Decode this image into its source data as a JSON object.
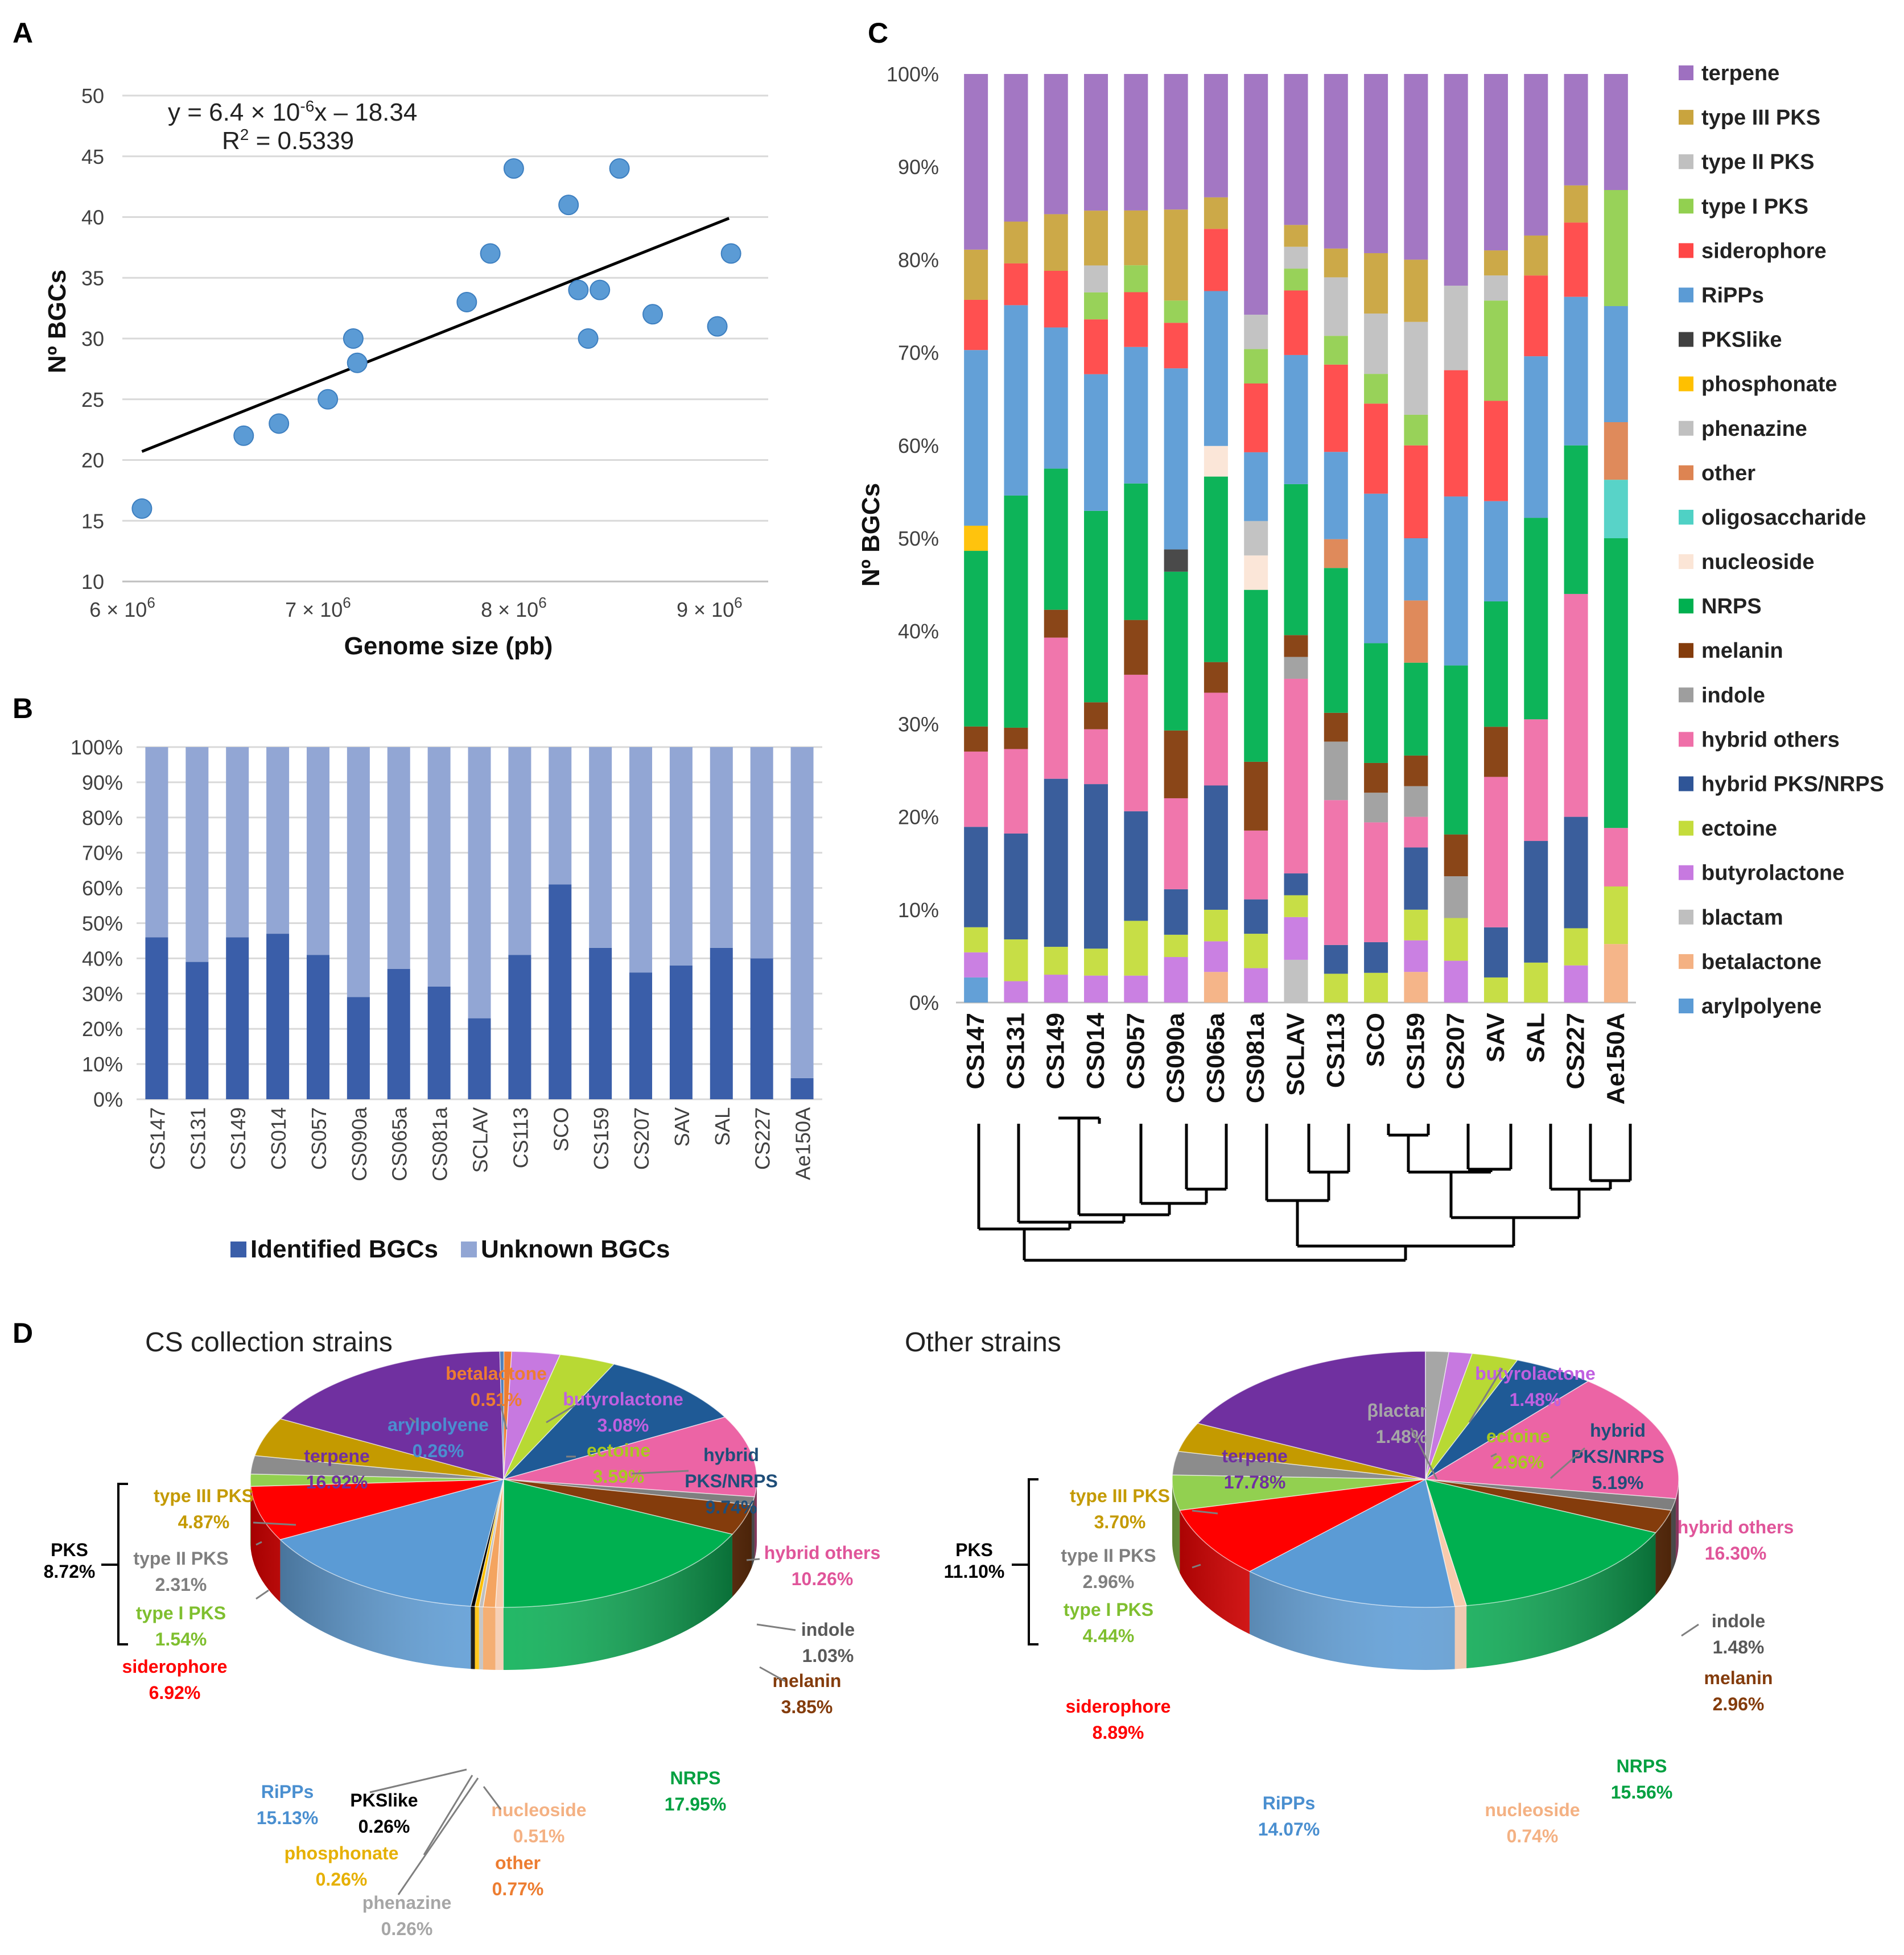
{
  "panels": {
    "A": "A",
    "B": "B",
    "C": "C",
    "D": "D"
  },
  "chart_data": [
    {
      "id": "A",
      "type": "scatter",
      "xlabel": "Genome size (pb)",
      "ylabel": "Nº BGCs",
      "xlim": [
        6000000,
        9300000
      ],
      "ylim": [
        10,
        50
      ],
      "xticks": [
        6000000,
        7000000,
        8000000,
        9000000
      ],
      "yticks": [
        10,
        15,
        20,
        25,
        30,
        35,
        40,
        45,
        50
      ],
      "xtick_mantissa": [
        "6",
        "7",
        "8",
        "9"
      ],
      "xtick_base": "× 10",
      "xtick_exp": "6",
      "points": [
        {
          "x": 6100000,
          "y": 16
        },
        {
          "x": 6620000,
          "y": 22
        },
        {
          "x": 6800000,
          "y": 23
        },
        {
          "x": 7050000,
          "y": 25
        },
        {
          "x": 7180000,
          "y": 30
        },
        {
          "x": 7200000,
          "y": 28
        },
        {
          "x": 7760000,
          "y": 33
        },
        {
          "x": 7880000,
          "y": 37
        },
        {
          "x": 8000000,
          "y": 44
        },
        {
          "x": 8280000,
          "y": 41
        },
        {
          "x": 8330000,
          "y": 34
        },
        {
          "x": 8380000,
          "y": 30
        },
        {
          "x": 8440000,
          "y": 34
        },
        {
          "x": 8540000,
          "y": 44
        },
        {
          "x": 8710000,
          "y": 32
        },
        {
          "x": 9040000,
          "y": 31
        },
        {
          "x": 9110000,
          "y": 37
        }
      ],
      "trendline": {
        "x_start": 6100000,
        "x_end": 9100000,
        "y_start": 20.7,
        "y_end": 39.9
      },
      "equation_parts": {
        "a": "y = 6.4 × 10",
        "exp": "-6",
        "b": "x – 18.34"
      },
      "r2_parts": {
        "a": "R",
        "exp": "2",
        "b": " = 0.5339"
      }
    },
    {
      "id": "B",
      "type": "bar",
      "stacked": true,
      "categories": [
        "CS147",
        "CS131",
        "CS149",
        "CS014",
        "CS057",
        "CS090a",
        "CS065a",
        "CS081a",
        "SCLAV",
        "CS113",
        "SCO",
        "CS159",
        "CS207",
        "SAV",
        "SAL",
        "CS227",
        "Ae150A"
      ],
      "series": [
        {
          "name": "Identified BGCs",
          "color": "#3a5ea9",
          "values": [
            46,
            39,
            46,
            47,
            41,
            29,
            37,
            32,
            23,
            41,
            61,
            43,
            36,
            38,
            43,
            40,
            6
          ]
        },
        {
          "name": "Unknown BGCs",
          "color": "#92a6d4",
          "values": [
            54,
            61,
            54,
            53,
            59,
            71,
            63,
            68,
            77,
            59,
            39,
            57,
            64,
            62,
            57,
            60,
            94
          ]
        }
      ],
      "yticks": [
        "0%",
        "10%",
        "20%",
        "30%",
        "40%",
        "50%",
        "60%",
        "70%",
        "80%",
        "90%",
        "100%"
      ],
      "ylim": [
        0,
        100
      ]
    },
    {
      "id": "C",
      "type": "bar",
      "stacked": true,
      "ylabel": "Nº BGCs",
      "ylim": [
        0,
        100
      ],
      "yticks": [
        "0%",
        "10%",
        "20%",
        "30%",
        "40%",
        "50%",
        "60%",
        "70%",
        "80%",
        "90%",
        "100%"
      ],
      "categories": [
        "CS147",
        "CS131",
        "CS149",
        "CS014",
        "CS057",
        "CS090a",
        "CS065a",
        "CS081a",
        "SCLAV",
        "CS113",
        "SCO",
        "CS159",
        "CS207",
        "SAV",
        "SAL",
        "CS227",
        "Ae150A"
      ],
      "series": [
        {
          "name": "arylpolyene",
          "color": "#5b9bd5",
          "values": [
            2.7,
            0,
            0,
            0,
            0,
            0,
            0,
            0,
            0,
            0,
            0,
            0,
            0,
            0,
            0,
            0,
            0
          ]
        },
        {
          "name": "betalactone",
          "color": "#f4b183",
          "values": [
            0,
            0,
            0,
            0,
            0,
            0,
            3.3,
            0,
            0,
            0,
            0,
            3.3,
            0,
            0,
            0,
            0,
            6.3
          ]
        },
        {
          "name": "blactam",
          "color": "#bfbfbf",
          "values": [
            0,
            0,
            0,
            0,
            0,
            0,
            0,
            0,
            4.5,
            0,
            0,
            0,
            0,
            0,
            0,
            0,
            0
          ]
        },
        {
          "name": "butyrolactone",
          "color": "#c779e0",
          "values": [
            2.7,
            2.3,
            3.0,
            2.9,
            2.9,
            4.9,
            3.3,
            3.7,
            4.5,
            0,
            0,
            3.4,
            4.5,
            0,
            0,
            4.0,
            0
          ]
        },
        {
          "name": "ectoine",
          "color": "#c4dc3c",
          "values": [
            2.7,
            4.5,
            3.0,
            2.9,
            5.9,
            2.4,
            3.4,
            3.7,
            2.3,
            3.1,
            3.2,
            3.3,
            4.6,
            2.7,
            4.3,
            4.0,
            6.2
          ]
        },
        {
          "name": "hybrid PKS/NRPS",
          "color": "#2f5597",
          "values": [
            10.8,
            11.4,
            18.1,
            17.7,
            11.8,
            4.9,
            13.4,
            3.7,
            2.3,
            3.1,
            3.3,
            6.7,
            0,
            5.4,
            13.1,
            12.0,
            0
          ]
        },
        {
          "name": "hybrid others",
          "color": "#ef6fa8",
          "values": [
            8.1,
            9.1,
            15.2,
            5.9,
            14.7,
            9.8,
            10.0,
            7.4,
            20.5,
            15.6,
            12.9,
            3.3,
            0,
            16.2,
            13.1,
            24.0,
            6.3
          ]
        },
        {
          "name": "indole",
          "color": "#9e9e9e",
          "values": [
            0,
            0,
            0,
            0,
            0,
            0,
            0,
            0,
            2.3,
            6.3,
            3.2,
            3.3,
            4.5,
            0,
            0,
            0,
            0
          ]
        },
        {
          "name": "melanin",
          "color": "#843c0c",
          "values": [
            2.7,
            2.3,
            3.0,
            2.9,
            5.9,
            7.3,
            3.3,
            7.4,
            2.3,
            3.1,
            3.2,
            3.3,
            4.5,
            5.4,
            0,
            0,
            0
          ]
        },
        {
          "name": "NRPS",
          "color": "#00b050",
          "values": [
            18.9,
            25.0,
            15.2,
            20.6,
            14.7,
            17.1,
            20.0,
            18.5,
            15.9,
            15.6,
            12.9,
            10.0,
            18.2,
            13.5,
            21.7,
            16.0,
            31.2
          ]
        },
        {
          "name": "nucleoside",
          "color": "#fbe5d6",
          "values": [
            0,
            0,
            0,
            0,
            0,
            0,
            3.3,
            3.7,
            0,
            0,
            0,
            0,
            0,
            0,
            0,
            0,
            0
          ]
        },
        {
          "name": "oligosaccharide",
          "color": "#4fd1c5",
          "values": [
            0,
            0,
            0,
            0,
            0,
            0,
            0,
            0,
            0,
            0,
            0,
            0,
            0,
            0,
            0,
            0,
            6.3
          ]
        },
        {
          "name": "other",
          "color": "#dd8452",
          "values": [
            0,
            0,
            0,
            0,
            0,
            0,
            0,
            0,
            0,
            3.1,
            0,
            6.7,
            0,
            0,
            0,
            0,
            6.2
          ]
        },
        {
          "name": "phenazine",
          "color": "#c0c0c0",
          "values": [
            0,
            0,
            0,
            0,
            0,
            0,
            0,
            3.7,
            0,
            0,
            0,
            0,
            0,
            0,
            0,
            0,
            0
          ]
        },
        {
          "name": "phosphonate",
          "color": "#ffc000",
          "values": [
            2.7,
            0,
            0,
            0,
            0,
            0,
            0,
            0,
            0,
            0,
            0,
            0,
            0,
            0,
            0,
            0,
            0
          ]
        },
        {
          "name": "PKSlike",
          "color": "#404040",
          "values": [
            0,
            0,
            0,
            0,
            0,
            2.4,
            0,
            0,
            0,
            0,
            0,
            0,
            0,
            0,
            0,
            0,
            0
          ]
        },
        {
          "name": "RiPPs",
          "color": "#5b9bd5",
          "values": [
            18.9,
            20.5,
            15.2,
            14.7,
            14.7,
            19.5,
            16.7,
            7.4,
            13.6,
            9.4,
            16.1,
            6.7,
            18.2,
            10.8,
            17.4,
            16.0,
            12.5
          ]
        },
        {
          "name": "siderophore",
          "color": "#ff4747",
          "values": [
            5.4,
            4.5,
            6.1,
            5.9,
            5.9,
            4.9,
            6.7,
            7.4,
            6.8,
            9.4,
            9.7,
            10.0,
            13.6,
            10.8,
            8.7,
            8.0,
            0
          ]
        },
        {
          "name": "type I PKS",
          "color": "#92d050",
          "values": [
            0,
            0,
            0,
            2.9,
            2.9,
            2.4,
            0,
            3.7,
            2.3,
            3.1,
            3.2,
            3.3,
            0,
            10.8,
            0,
            0,
            12.5
          ]
        },
        {
          "name": "type II PKS",
          "color": "#c0c0c0",
          "values": [
            0,
            0,
            0,
            2.9,
            0,
            0,
            0,
            3.7,
            2.3,
            6.3,
            6.5,
            10.0,
            9.1,
            2.7,
            0,
            0,
            0
          ]
        },
        {
          "name": "type III PKS",
          "color": "#c9a43e",
          "values": [
            5.4,
            4.5,
            6.1,
            5.9,
            5.9,
            9.8,
            3.4,
            0,
            2.3,
            3.1,
            6.5,
            6.7,
            0,
            2.7,
            4.3,
            4.0,
            0
          ]
        },
        {
          "name": "terpene",
          "color": "#9e70c0",
          "values": [
            18.9,
            15.9,
            15.1,
            14.7,
            14.7,
            14.6,
            13.3,
            25.9,
            15.9,
            18.8,
            19.3,
            20.0,
            22.8,
            19.0,
            17.4,
            12.0,
            12.5
          ]
        }
      ]
    },
    {
      "id": "D1",
      "type": "pie",
      "title": "CS collection strains",
      "bracket_label": "PKS",
      "bracket_value": "8.72%",
      "slices": [
        {
          "name": "betalactone",
          "value": "0.51%",
          "pct": 0.51,
          "color": "#ed7d31"
        },
        {
          "name": "butyrolactone",
          "value": "3.08%",
          "pct": 3.08,
          "color": "#c779e0"
        },
        {
          "name": "ectoine",
          "value": "3.59%",
          "pct": 3.59,
          "color": "#b8d934"
        },
        {
          "name": "hybrid PKS/NRPS",
          "value": "9.74%",
          "pct": 9.74,
          "color": "#1f5a96"
        },
        {
          "name": "hybrid others",
          "value": "10.26%",
          "pct": 10.26,
          "color": "#ec64a5"
        },
        {
          "name": "indole",
          "value": "1.03%",
          "pct": 1.03,
          "color": "#7f7f7f"
        },
        {
          "name": "melanin",
          "value": "3.85%",
          "pct": 3.85,
          "color": "#843c0c"
        },
        {
          "name": "NRPS",
          "value": "17.95%",
          "pct": 17.95,
          "color": "#00b050"
        },
        {
          "name": "nucleoside",
          "value": "0.51%",
          "pct": 0.51,
          "color": "#f8cbad"
        },
        {
          "name": "other",
          "value": "0.77%",
          "pct": 0.77,
          "color": "#f4a460"
        },
        {
          "name": "phenazine",
          "value": "0.26%",
          "pct": 0.26,
          "color": "#bfbfbf"
        },
        {
          "name": "phosphonate",
          "value": "0.26%",
          "pct": 0.26,
          "color": "#ffc000"
        },
        {
          "name": "PKSlike",
          "value": "0.26%",
          "pct": 0.26,
          "color": "#000000"
        },
        {
          "name": "RiPPs",
          "value": "15.13%",
          "pct": 15.13,
          "color": "#5b9bd5"
        },
        {
          "name": "siderophore",
          "value": "6.92%",
          "pct": 6.92,
          "color": "#ff0000"
        },
        {
          "name": "type I PKS",
          "value": "1.54%",
          "pct": 1.54,
          "color": "#92d050"
        },
        {
          "name": "type II PKS",
          "value": "2.31%",
          "pct": 2.31,
          "color": "#8c8c8c"
        },
        {
          "name": "type III PKS",
          "value": "4.87%",
          "pct": 4.87,
          "color": "#c49a00"
        },
        {
          "name": "terpene",
          "value": "16.92%",
          "pct": 16.92,
          "color": "#7030a0"
        },
        {
          "name": "arylpolyene",
          "value": "0.26%",
          "pct": 0.26,
          "color": "#4f81bd"
        }
      ]
    },
    {
      "id": "D2",
      "type": "pie",
      "title": "Other strains",
      "bracket_label": "PKS",
      "bracket_value": "11.10%",
      "slices": [
        {
          "name": "βlactam",
          "value": "1.48%",
          "pct": 1.48,
          "color": "#a6a6a6"
        },
        {
          "name": "butyrolactone",
          "value": "1.48%",
          "pct": 1.48,
          "color": "#c779e0"
        },
        {
          "name": "ectoine",
          "value": "2.96%",
          "pct": 2.96,
          "color": "#b8d934"
        },
        {
          "name": "hybrid PKS/NRPS",
          "value": "5.19%",
          "pct": 5.19,
          "color": "#1f5a96"
        },
        {
          "name": "hybrid others",
          "value": "16.30%",
          "pct": 16.3,
          "color": "#ec64a5"
        },
        {
          "name": "indole",
          "value": "1.48%",
          "pct": 1.48,
          "color": "#7f7f7f"
        },
        {
          "name": "melanin",
          "value": "2.96%",
          "pct": 2.96,
          "color": "#843c0c"
        },
        {
          "name": "NRPS",
          "value": "15.56%",
          "pct": 15.56,
          "color": "#00b050"
        },
        {
          "name": "nucleoside",
          "value": "0.74%",
          "pct": 0.74,
          "color": "#f8cbad"
        },
        {
          "name": "RiPPs",
          "value": "14.07%",
          "pct": 14.07,
          "color": "#5b9bd5"
        },
        {
          "name": "siderophore",
          "value": "8.89%",
          "pct": 8.89,
          "color": "#ff0000"
        },
        {
          "name": "type I PKS",
          "value": "4.44%",
          "pct": 4.44,
          "color": "#92d050"
        },
        {
          "name": "type II PKS",
          "value": "2.96%",
          "pct": 2.96,
          "color": "#8c8c8c"
        },
        {
          "name": "type III PKS",
          "value": "3.70%",
          "pct": 3.7,
          "color": "#c49a00"
        },
        {
          "name": "terpene",
          "value": "17.78%",
          "pct": 17.78,
          "color": "#7030a0"
        }
      ]
    }
  ]
}
